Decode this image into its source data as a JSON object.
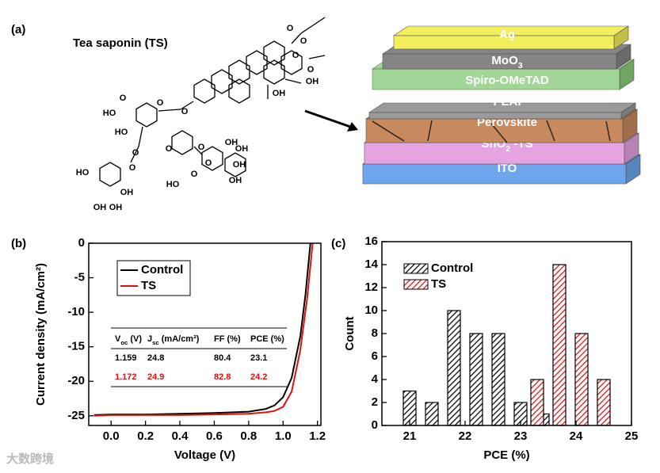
{
  "panel_labels": [
    "(a)",
    "(b)",
    "(c)"
  ],
  "structure": {
    "title": "Tea saponin (TS)",
    "labels": [
      "O",
      "O",
      "O",
      "O",
      "OH",
      "OH",
      "O",
      "HO",
      "O",
      "HO",
      "O",
      "O",
      "O",
      "O",
      "OH",
      "O",
      "O",
      "OH",
      "OH",
      "OH",
      "HO",
      "O",
      "HO",
      "OH",
      "OH",
      "OH"
    ]
  },
  "device_stack": {
    "layers": [
      {
        "name": [
          "ITO"
        ],
        "color": "#6ea6ee"
      },
      {
        "name": [
          "SnO",
          "2",
          " -TS"
        ],
        "color": "#e6a3e2"
      },
      {
        "name": [
          "Perovskite"
        ],
        "color": "#c8895d"
      },
      {
        "name": [
          "PEAI"
        ],
        "color": "#9a9a9a"
      },
      {
        "name": [
          "Spiro-OMeTAD"
        ],
        "color": "#8ccd7c"
      },
      {
        "name": [
          "MoO",
          "3"
        ],
        "color": "#858585"
      },
      {
        "name": [
          "Ag"
        ],
        "color": "#f3ef5c"
      }
    ]
  },
  "watermark": "大数跨境",
  "chart_data": [
    {
      "type": "line",
      "xlabel": "Voltage (V)",
      "ylabel": "Current density (mA/cm²)",
      "xlim": [
        -0.13,
        1.22
      ],
      "ylim": [
        -26.4,
        0
      ],
      "xticks": [
        {
          "value": 0,
          "label": "0.0"
        },
        {
          "value": 0.2,
          "label": "0.2"
        },
        {
          "value": 0.4,
          "label": "0.4"
        },
        {
          "value": 0.6,
          "label": "0.6"
        },
        {
          "value": 0.8,
          "label": "0.8"
        },
        {
          "value": 1,
          "label": "1.0"
        },
        {
          "value": 1.2,
          "label": "1.2"
        }
      ],
      "yticks": [
        0,
        -5,
        -10,
        -15,
        -20,
        -25
      ],
      "legend": "upper left",
      "series": [
        {
          "name": "Control",
          "color": "#000000",
          "x": [
            -0.1,
            0,
            0.2,
            0.4,
            0.6,
            0.8,
            0.9,
            0.95,
            1.0,
            1.05,
            1.1,
            1.13,
            1.159
          ],
          "values": [
            -24.9,
            -24.8,
            -24.8,
            -24.7,
            -24.6,
            -24.4,
            -24.0,
            -23.5,
            -22.3,
            -19.5,
            -13.5,
            -7.5,
            0
          ]
        },
        {
          "name": "TS",
          "color": "#e01010",
          "x": [
            -0.1,
            0,
            0.2,
            0.4,
            0.6,
            0.8,
            0.9,
            0.95,
            1.0,
            1.05,
            1.1,
            1.14,
            1.172
          ],
          "values": [
            -25.0,
            -24.9,
            -24.9,
            -24.9,
            -24.8,
            -24.7,
            -24.5,
            -24.3,
            -23.7,
            -21.5,
            -15.5,
            -8,
            0
          ]
        }
      ],
      "table": {
        "headers": [
          [
            "V",
            "oc",
            " (V)"
          ],
          [
            "J",
            "sc",
            " (mA/cm²)"
          ],
          [
            "FF (%)"
          ],
          [
            "PCE (%)"
          ]
        ],
        "rows": [
          [
            1.159,
            24.8,
            80.4,
            23.1
          ],
          [
            1.172,
            24.9,
            82.8,
            24.2
          ]
        ],
        "row_colors": [
          "#000000",
          "#e01010"
        ]
      }
    },
    {
      "type": "bar",
      "xlabel": "PCE (%)",
      "ylabel": "Count",
      "xlim": [
        20.5,
        25
      ],
      "ylim": [
        0,
        16
      ],
      "xticks": [
        21,
        22,
        23,
        24,
        25
      ],
      "yticks": [
        0,
        2,
        4,
        6,
        8,
        10,
        12,
        14,
        16
      ],
      "legend": "upper left",
      "series": [
        {
          "name": "Control",
          "color": "#000000",
          "x": [
            21.0,
            21.4,
            21.8,
            22.2,
            22.6,
            23.0,
            23.4
          ],
          "values": [
            3,
            2,
            10,
            8,
            8,
            2,
            1
          ]
        },
        {
          "name": "TS",
          "color": "#e01010",
          "x": [
            23.3,
            23.7,
            24.1,
            24.5
          ],
          "values": [
            4,
            14,
            8,
            4
          ]
        }
      ]
    }
  ]
}
